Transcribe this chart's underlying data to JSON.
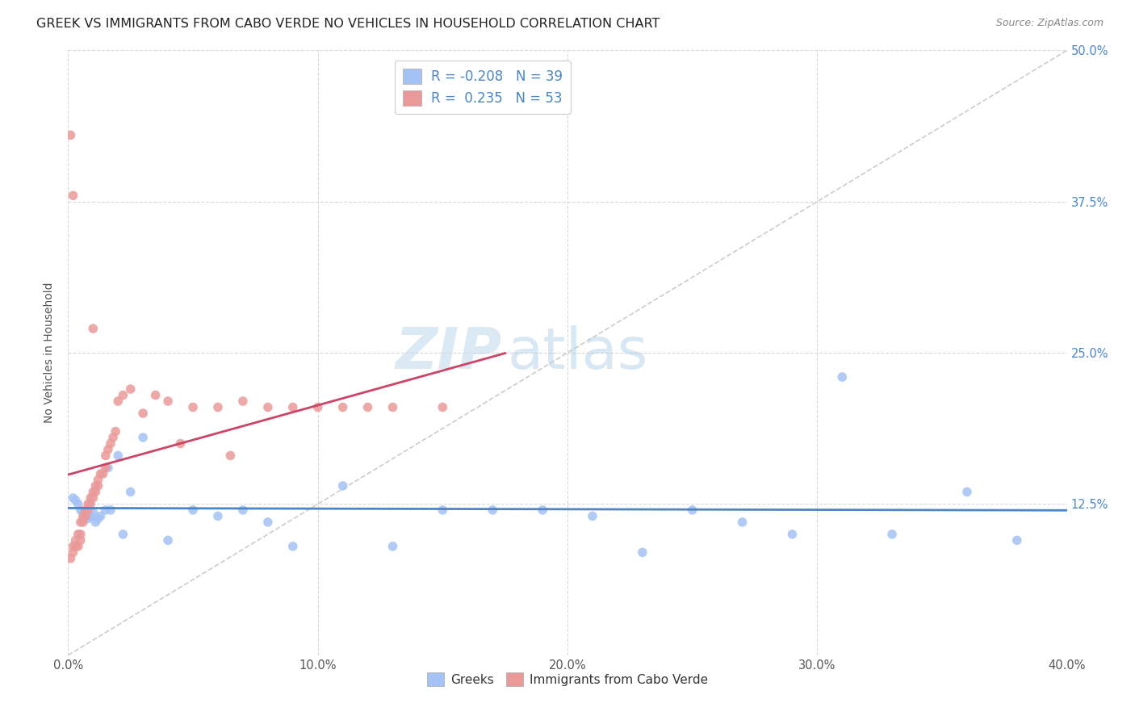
{
  "title": "GREEK VS IMMIGRANTS FROM CABO VERDE NO VEHICLES IN HOUSEHOLD CORRELATION CHART",
  "source": "Source: ZipAtlas.com",
  "ylabel": "No Vehicles in Household",
  "xmin": 0.0,
  "xmax": 0.4,
  "ymin": 0.0,
  "ymax": 0.5,
  "xtick_vals": [
    0.0,
    0.1,
    0.2,
    0.3,
    0.4
  ],
  "ytick_vals": [
    0.0,
    0.125,
    0.25,
    0.375,
    0.5
  ],
  "blue_color": "#a4c2f4",
  "pink_color": "#ea9999",
  "blue_line_color": "#4a86c8",
  "pink_line_color": "#cc4466",
  "dashed_line_color": "#cccccc",
  "legend_label_blue": "Greeks",
  "legend_label_pink": "Immigrants from Cabo Verde",
  "watermark_zip": "ZIP",
  "watermark_atlas": "atlas",
  "title_fontsize": 11.5,
  "axis_label_fontsize": 10,
  "tick_fontsize": 10.5,
  "blue_scatter": {
    "x": [
      0.002,
      0.003,
      0.004,
      0.005,
      0.006,
      0.007,
      0.008,
      0.009,
      0.01,
      0.011,
      0.012,
      0.013,
      0.015,
      0.016,
      0.017,
      0.02,
      0.022,
      0.025,
      0.03,
      0.04,
      0.05,
      0.06,
      0.07,
      0.08,
      0.09,
      0.11,
      0.13,
      0.15,
      0.17,
      0.19,
      0.21,
      0.23,
      0.25,
      0.27,
      0.29,
      0.31,
      0.33,
      0.36,
      0.38
    ],
    "y": [
      0.13,
      0.128,
      0.125,
      0.12,
      0.118,
      0.115,
      0.113,
      0.115,
      0.118,
      0.11,
      0.113,
      0.115,
      0.12,
      0.155,
      0.12,
      0.165,
      0.1,
      0.135,
      0.18,
      0.095,
      0.12,
      0.115,
      0.12,
      0.11,
      0.09,
      0.14,
      0.09,
      0.12,
      0.12,
      0.12,
      0.115,
      0.085,
      0.12,
      0.11,
      0.1,
      0.23,
      0.1,
      0.135,
      0.095
    ]
  },
  "pink_scatter": {
    "x": [
      0.001,
      0.002,
      0.002,
      0.003,
      0.003,
      0.004,
      0.004,
      0.005,
      0.005,
      0.005,
      0.006,
      0.006,
      0.007,
      0.007,
      0.008,
      0.008,
      0.009,
      0.009,
      0.01,
      0.01,
      0.011,
      0.011,
      0.012,
      0.012,
      0.013,
      0.014,
      0.015,
      0.015,
      0.016,
      0.017,
      0.018,
      0.019,
      0.02,
      0.022,
      0.025,
      0.03,
      0.035,
      0.04,
      0.045,
      0.05,
      0.06,
      0.065,
      0.07,
      0.08,
      0.09,
      0.1,
      0.11,
      0.12,
      0.13,
      0.15,
      0.001,
      0.002,
      0.01
    ],
    "y": [
      0.08,
      0.085,
      0.09,
      0.09,
      0.095,
      0.09,
      0.1,
      0.095,
      0.1,
      0.11,
      0.11,
      0.115,
      0.115,
      0.12,
      0.12,
      0.125,
      0.125,
      0.13,
      0.13,
      0.135,
      0.135,
      0.14,
      0.14,
      0.145,
      0.15,
      0.15,
      0.155,
      0.165,
      0.17,
      0.175,
      0.18,
      0.185,
      0.21,
      0.215,
      0.22,
      0.2,
      0.215,
      0.21,
      0.175,
      0.205,
      0.205,
      0.165,
      0.21,
      0.205,
      0.205,
      0.205,
      0.205,
      0.205,
      0.205,
      0.205,
      0.43,
      0.38,
      0.27
    ]
  },
  "pink_line_xrange": [
    0.0,
    0.175
  ],
  "blue_line_xrange": [
    0.0,
    0.4
  ]
}
